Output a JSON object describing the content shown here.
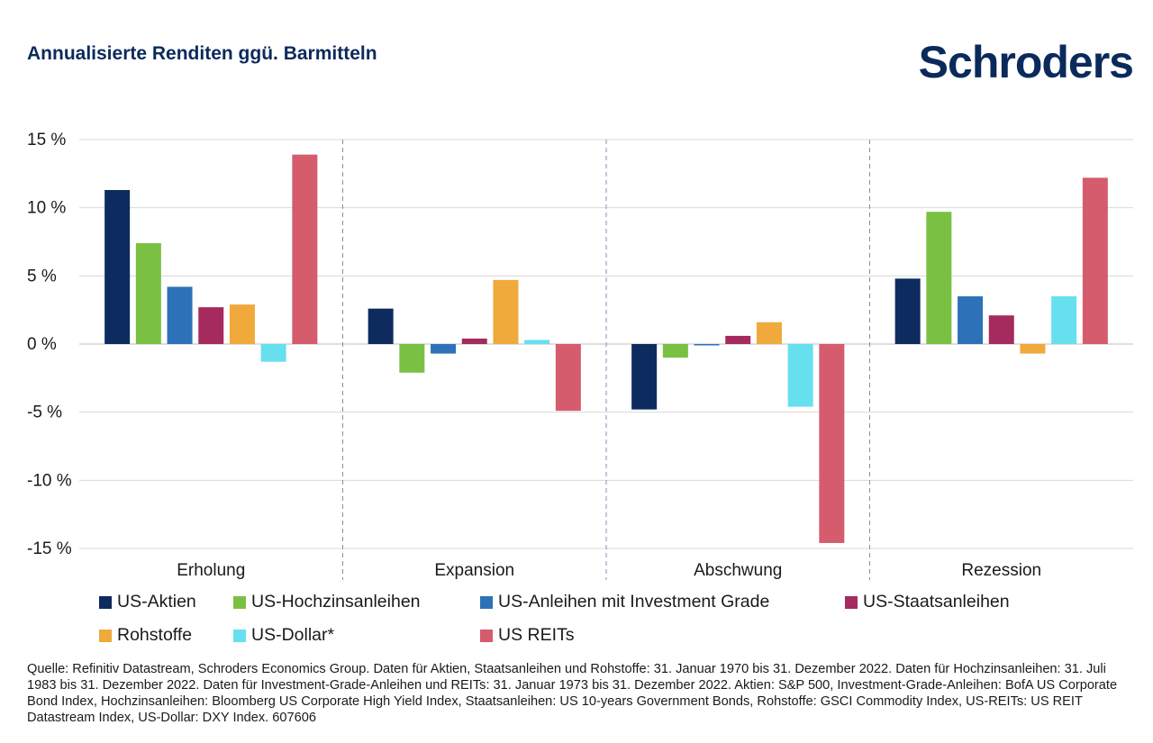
{
  "header": {
    "title": "Annualisierte Renditen ggü. Barmitteln",
    "brand": "Schroders"
  },
  "chart_data": {
    "type": "bar",
    "categories": [
      "Erholung",
      "Expansion",
      "Abschwung",
      "Rezession"
    ],
    "ylim": [
      -15,
      15
    ],
    "yticks": [
      15,
      10,
      5,
      0,
      -5,
      -10,
      -15
    ],
    "ytick_labels": [
      "15 %",
      "10 %",
      "5 %",
      "0 %",
      "-5 %",
      "-10 %",
      "-15 %"
    ],
    "grid": true,
    "legend_position": "bottom",
    "series": [
      {
        "name": "US-Aktien",
        "color": "#0d2b5e",
        "values": [
          11.3,
          2.6,
          -4.8,
          4.8
        ]
      },
      {
        "name": "US-Hochzinsanleihen",
        "color": "#7ac143",
        "values": [
          7.4,
          -2.1,
          -1.0,
          9.7
        ]
      },
      {
        "name": "US-Anleihen mit Investment Grade",
        "color": "#2d72b8",
        "values": [
          4.2,
          -0.7,
          -0.1,
          3.5
        ]
      },
      {
        "name": "US-Staatsanleihen",
        "color": "#a52a5e",
        "values": [
          2.7,
          0.4,
          0.6,
          2.1
        ]
      },
      {
        "name": "Rohstoffe",
        "color": "#f0a93b",
        "values": [
          2.9,
          4.7,
          1.6,
          -0.7
        ]
      },
      {
        "name": "US-Dollar*",
        "color": "#66e0ef",
        "values": [
          -1.3,
          0.3,
          -4.6,
          3.5
        ]
      },
      {
        "name": "US REITs",
        "color": "#d45c6c",
        "values": [
          13.9,
          -4.9,
          -14.6,
          12.2
        ]
      }
    ]
  },
  "source_text": "Quelle: Refinitiv Datastream, Schroders Economics Group. Daten für Aktien, Staatsanleihen und Rohstoffe: 31. Januar 1970 bis 31. Dezember 2022. Daten für Hochzinsanleihen: 31. Juli 1983 bis 31. Dezember 2022. Daten für Investment-Grade-Anleihen und REITs: 31. Januar 1973 bis 31. Dezember 2022. Aktien: S&P 500, Investment-Grade-Anleihen: BofA US Corporate Bond Index, Hochzinsanleihen: Bloomberg US Corporate High Yield Index, Staatsanleihen: US 10-years Government Bonds, Rohstoffe: GSCI Commodity Index, US-REITs: US REIT Datastream Index, US-Dollar: DXY Index. 607606"
}
